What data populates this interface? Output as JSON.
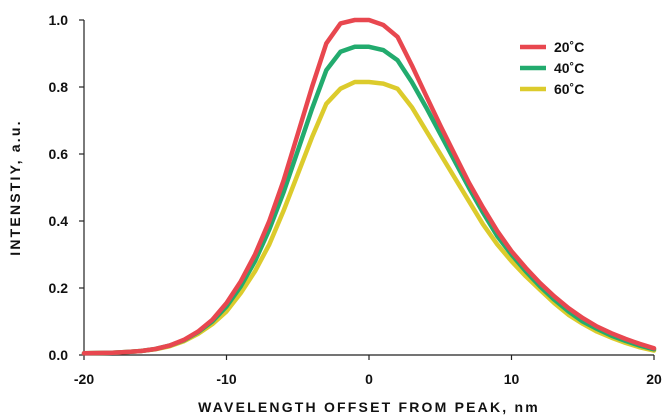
{
  "chart_data": {
    "type": "line",
    "title": "",
    "xlabel": "WAVELENGTH OFFSET FROM PEAK, nm",
    "ylabel": "INTENSTIY, a.u.",
    "xlim": [
      -20,
      20
    ],
    "ylim": [
      0,
      1.0
    ],
    "x_ticks": [
      -20,
      -10,
      0,
      10,
      20
    ],
    "x_tick_labels": [
      "-20",
      "-10",
      "0",
      "10",
      "20"
    ],
    "y_ticks": [
      0,
      0.2,
      0.4,
      0.6,
      0.8,
      1.0
    ],
    "y_tick_labels": [
      "0.0",
      "0.2",
      "0.4",
      "0.6",
      "0.8",
      "1.0"
    ],
    "grid": false,
    "legend_position": "top-right",
    "x": [
      -20,
      -19,
      -18,
      -17,
      -16,
      -15,
      -14,
      -13,
      -12,
      -11,
      -10,
      -9,
      -8,
      -7,
      -6,
      -5,
      -4,
      -3,
      -2,
      -1,
      0,
      1,
      2,
      3,
      4,
      5,
      6,
      7,
      8,
      9,
      10,
      11,
      12,
      13,
      14,
      15,
      16,
      17,
      18,
      19,
      20
    ],
    "series": [
      {
        "name": "20˚C",
        "color": "#e8474f",
        "values": [
          0.005,
          0.006,
          0.007,
          0.009,
          0.012,
          0.018,
          0.028,
          0.045,
          0.07,
          0.105,
          0.155,
          0.22,
          0.3,
          0.4,
          0.52,
          0.66,
          0.8,
          0.93,
          0.99,
          1.0,
          1.0,
          0.985,
          0.95,
          0.865,
          0.775,
          0.685,
          0.6,
          0.515,
          0.44,
          0.37,
          0.31,
          0.26,
          0.215,
          0.175,
          0.14,
          0.11,
          0.085,
          0.065,
          0.048,
          0.033,
          0.02
        ]
      },
      {
        "name": "40˚C",
        "color": "#22ab6e",
        "values": [
          0.005,
          0.006,
          0.007,
          0.009,
          0.012,
          0.018,
          0.028,
          0.044,
          0.068,
          0.1,
          0.145,
          0.205,
          0.28,
          0.375,
          0.485,
          0.61,
          0.735,
          0.85,
          0.905,
          0.92,
          0.92,
          0.91,
          0.88,
          0.815,
          0.74,
          0.66,
          0.58,
          0.5,
          0.425,
          0.355,
          0.3,
          0.25,
          0.205,
          0.165,
          0.13,
          0.1,
          0.078,
          0.058,
          0.042,
          0.028,
          0.017
        ]
      },
      {
        "name": "60˚C",
        "color": "#dccb2c",
        "values": [
          0.005,
          0.006,
          0.007,
          0.009,
          0.012,
          0.017,
          0.026,
          0.041,
          0.063,
          0.092,
          0.13,
          0.185,
          0.25,
          0.33,
          0.43,
          0.54,
          0.65,
          0.75,
          0.795,
          0.815,
          0.815,
          0.81,
          0.795,
          0.74,
          0.67,
          0.6,
          0.53,
          0.46,
          0.39,
          0.33,
          0.28,
          0.235,
          0.195,
          0.155,
          0.12,
          0.093,
          0.07,
          0.052,
          0.036,
          0.023,
          0.013
        ]
      }
    ]
  }
}
